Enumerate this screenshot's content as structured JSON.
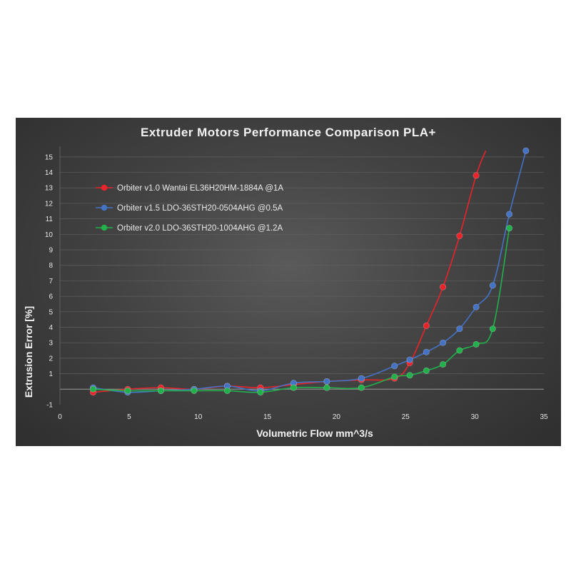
{
  "chart_data": {
    "type": "line",
    "title": "Extruder Motors Performance Comparison PLA+",
    "xlabel": "Volumetric Flow mm^3/s",
    "ylabel": "Extrusion Error [%]",
    "xlim": [
      0,
      35
    ],
    "ylim": [
      -1,
      15.5
    ],
    "x_ticks": [
      0,
      5,
      10,
      15,
      20,
      25,
      30,
      35
    ],
    "y_ticks": [
      -1,
      1,
      2,
      3,
      4,
      5,
      6,
      7,
      8,
      9,
      10,
      11,
      12,
      13,
      14,
      15
    ],
    "grid": "horizontal",
    "legend_position": "top-left",
    "series": [
      {
        "name": "Orbiter v1.0 Wantai EL36H20HM-1884A @1A",
        "color": "#e8232a",
        "x": [
          2.4,
          4.9,
          7.3,
          9.7,
          12.1,
          14.5,
          16.9,
          19.3,
          21.8,
          24.2,
          25.3,
          26.5,
          27.7,
          28.9,
          30.1,
          30.8
        ],
        "y": [
          -0.2,
          0.0,
          0.1,
          0.0,
          0.2,
          0.1,
          0.3,
          0.5,
          0.6,
          0.7,
          1.7,
          4.1,
          6.6,
          9.9,
          13.8,
          15.4
        ],
        "show_markers": [
          true,
          true,
          true,
          true,
          true,
          true,
          true,
          true,
          true,
          true,
          true,
          true,
          true,
          true,
          true,
          false
        ]
      },
      {
        "name": "Orbiter v1.5 LDO-36STH20-0504AHG @0.5A",
        "color": "#4472c4",
        "x": [
          2.4,
          4.9,
          7.3,
          9.7,
          12.1,
          14.5,
          16.9,
          19.3,
          21.8,
          24.2,
          25.3,
          26.5,
          27.7,
          28.9,
          30.1,
          31.3,
          32.5,
          33.7
        ],
        "y": [
          0.1,
          -0.2,
          -0.1,
          0.0,
          0.2,
          -0.1,
          0.4,
          0.5,
          0.7,
          1.5,
          1.9,
          2.4,
          3.0,
          3.9,
          5.3,
          6.7,
          11.3,
          15.4
        ],
        "show_markers": [
          true,
          true,
          true,
          true,
          true,
          true,
          true,
          true,
          true,
          true,
          true,
          true,
          true,
          true,
          true,
          true,
          true,
          true
        ]
      },
      {
        "name": "Orbiter v2.0 LDO-36STH20-1004AHG @1.2A",
        "color": "#22b04b",
        "x": [
          2.4,
          4.9,
          7.3,
          9.7,
          12.1,
          14.5,
          16.9,
          19.3,
          21.8,
          24.2,
          25.3,
          26.5,
          27.7,
          28.9,
          30.1,
          31.3,
          32.5
        ],
        "y": [
          0.0,
          -0.1,
          -0.1,
          -0.1,
          -0.1,
          -0.2,
          0.1,
          0.1,
          0.1,
          0.8,
          0.9,
          1.2,
          1.6,
          2.5,
          2.9,
          3.9,
          10.4
        ],
        "show_markers": [
          true,
          true,
          true,
          true,
          true,
          true,
          true,
          true,
          true,
          true,
          true,
          true,
          true,
          true,
          true,
          true,
          true
        ]
      }
    ]
  }
}
